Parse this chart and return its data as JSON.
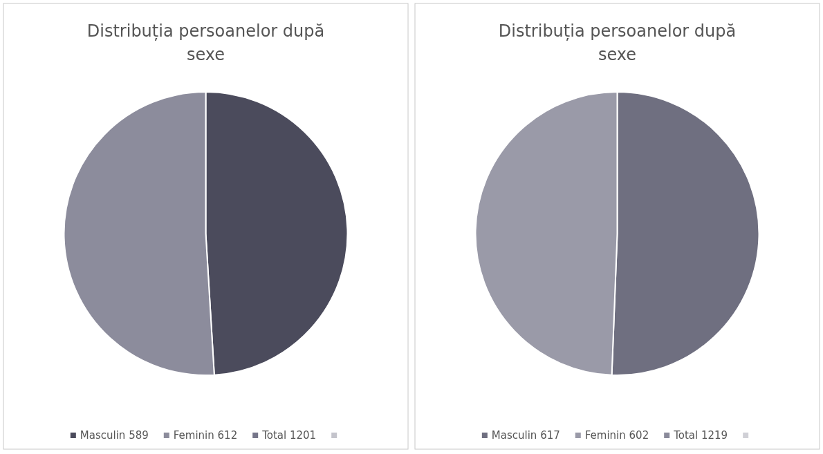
{
  "chart_data": [
    {
      "type": "pie",
      "title": "Distribuția persoanelor după sexe",
      "categories": [
        "Masculin 589",
        "Feminin 612",
        "Total 1201",
        null
      ],
      "values": [
        589,
        612,
        null,
        null
      ],
      "colors": [
        "#4b4b5c",
        "#8c8c9c",
        "#76768a",
        "#c4c4cc"
      ],
      "legend": "bottom"
    },
    {
      "type": "pie",
      "title": "Distribuția persoanelor după sexe",
      "categories": [
        "Masculin 617",
        "Feminin 602",
        "Total 1219",
        null
      ],
      "values": [
        617,
        602,
        null,
        null
      ],
      "colors": [
        "#6f6f80",
        "#9a9aa8",
        "#8a8a9a",
        "#d0d0d6"
      ],
      "legend": "bottom"
    }
  ]
}
